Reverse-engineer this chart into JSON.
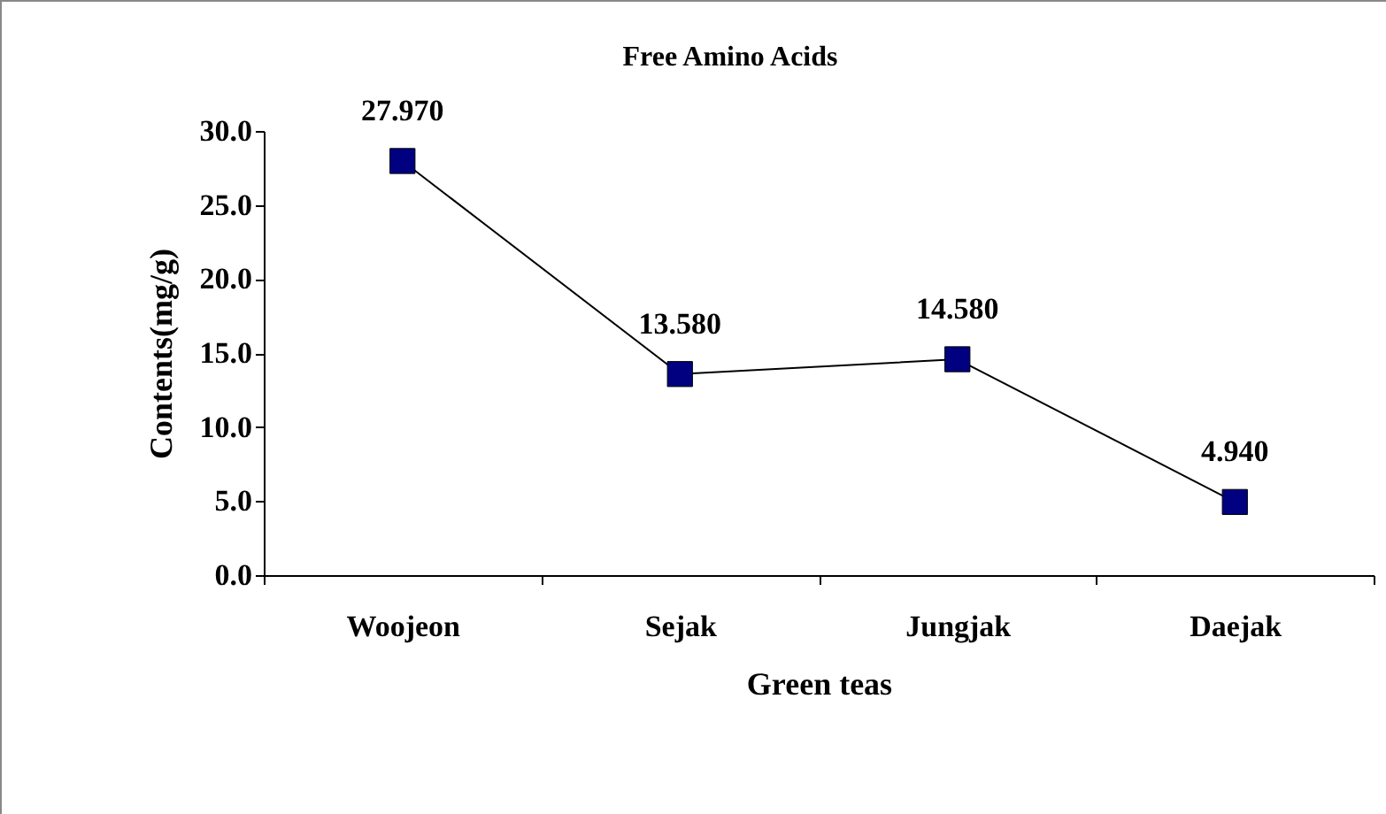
{
  "chart_data": {
    "type": "line",
    "title": "Free Amino Acids",
    "xlabel": "Green teas",
    "ylabel": "Contents(mg/g)",
    "categories": [
      "Woojeon",
      "Sejak",
      "Jungjak",
      "Daejak"
    ],
    "series": [
      {
        "color": "#000080",
        "values": [
          27.97,
          13.58,
          14.58,
          4.94
        ],
        "value_labels": [
          "27.970",
          "13.580",
          "14.580",
          "4.940"
        ]
      }
    ],
    "ylim": [
      0,
      30
    ],
    "yticks": [
      {
        "value": 0,
        "label": "0.0"
      },
      {
        "value": 5,
        "label": "5.0"
      },
      {
        "value": 10,
        "label": "10.0"
      },
      {
        "value": 15,
        "label": "15.0"
      },
      {
        "value": 20,
        "label": "20.0"
      },
      {
        "value": 25,
        "label": "25.0"
      },
      {
        "value": 30,
        "label": "30.0"
      }
    ],
    "marker": "square",
    "grid": false
  }
}
